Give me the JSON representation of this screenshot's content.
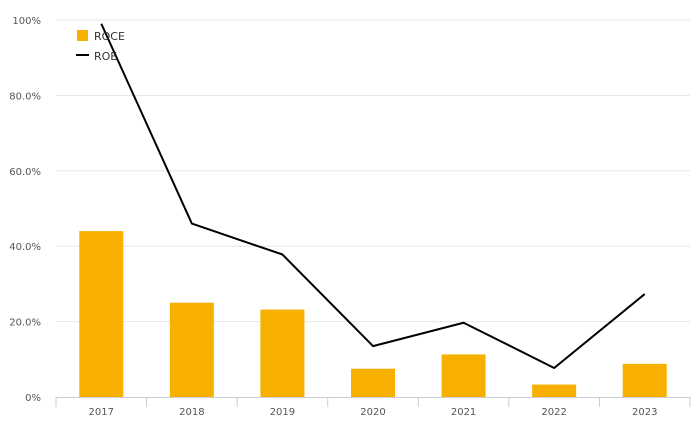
{
  "chart_data": {
    "type": "bar",
    "categories": [
      "2017",
      "2018",
      "2019",
      "2020",
      "2021",
      "2022",
      "2023"
    ],
    "series": [
      {
        "name": "ROCE",
        "kind": "bar",
        "color": "#f8b000",
        "values": [
          44.0,
          25.0,
          23.2,
          7.5,
          11.3,
          3.3,
          8.8
        ]
      },
      {
        "name": "ROE",
        "kind": "line",
        "color": "#000000",
        "values": [
          99.0,
          46.0,
          37.8,
          13.5,
          19.7,
          7.7,
          27.3
        ]
      }
    ],
    "y_ticks": [
      "0%",
      "20.0%",
      "40.0%",
      "60.0%",
      "80.0%",
      "100%"
    ],
    "y_tick_values": [
      0,
      20,
      40,
      60,
      80,
      100
    ],
    "ylim": [
      0,
      100
    ],
    "grid": true,
    "legend_position": "top-left",
    "title": "",
    "xlabel": "",
    "ylabel": ""
  }
}
